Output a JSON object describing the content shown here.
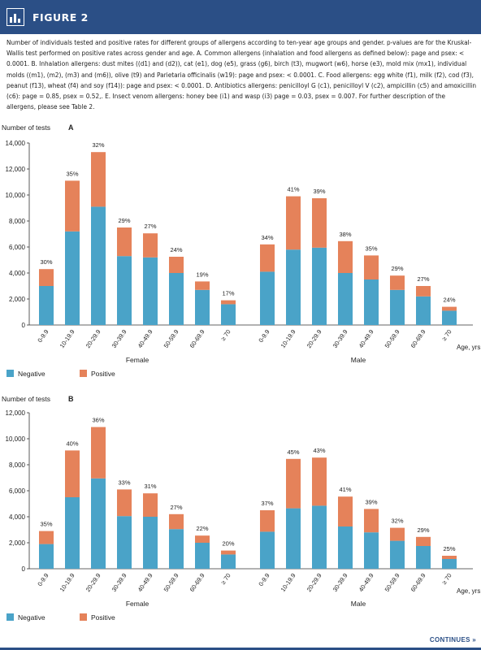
{
  "header": {
    "title": "FIGURE 2"
  },
  "caption": {
    "text": "Number of individuals tested and positive rates for different groups of allergens according to ten-year age groups and gender. p-values are for the Kruskal-Wallis test performed on positive rates across gender and age. A. Common allergens (inhalation and food allergens as defined below): page and psex: < 0.0001. B. Inhalation allergens: dust mites ((d1) and (d2)), cat (e1), dog (e5), grass (g6), birch (t3), mugwort (w6), horse (e3), mold mix (mx1), individual molds ((m1), (m2), (m3) and (m6)), olive (t9) and Parietaria officinalis (w19): page and psex: < 0.0001. C. Food allergens: egg white (f1), milk (f2), cod (f3), peanut (f13), wheat (f4) and soy (f14)): page and psex: < 0.0001. D. Antibiotics allergens: penicilloyl G (c1), penicilloyl V (c2), ampicillin (c5) and amoxicillin (c6): page = 0.85, psex = 0.52,. E. Insect venom allergens: honey bee (i1) and wasp (i3) page = 0.03, psex = 0.007. For further description of the allergens, please see Table 2."
  },
  "footer": {
    "continues": "CONTINUES »"
  },
  "colors": {
    "negative": "#4aa3c8",
    "positive": "#e5825a",
    "brand": "#2b4f86"
  },
  "chart_data": [
    {
      "type": "bar",
      "panel": "A",
      "stacked": true,
      "ylabel": "Number of tests",
      "xlabel": "Age, yrs",
      "ylim": [
        0,
        14000
      ],
      "yticks": [
        0,
        2000,
        4000,
        6000,
        8000,
        10000,
        12000,
        14000
      ],
      "ytick_labels": [
        "0",
        "2,000",
        "4,000",
        "6,000",
        "8,000",
        "10,000",
        "12,000",
        "14,000"
      ],
      "groups": [
        {
          "name": "Female",
          "categories": [
            "0-9.9",
            "10-19.9",
            "20-29.9",
            "30-39.9",
            "40-49.9",
            "50-59.9",
            "60-69.9",
            "≥ 70"
          ],
          "negative": [
            3000,
            7200,
            9100,
            5300,
            5200,
            4000,
            2700,
            1600
          ],
          "positive": [
            1300,
            3900,
            4200,
            2200,
            1850,
            1250,
            650,
            300
          ],
          "labels": [
            "30%",
            "35%",
            "32%",
            "29%",
            "27%",
            "24%",
            "19%",
            "17%"
          ]
        },
        {
          "name": "Male",
          "categories": [
            "0-9.9",
            "10-19.9",
            "20-29.9",
            "30-39.9",
            "40-49.9",
            "50-59.9",
            "60-69.9",
            "≥ 70"
          ],
          "negative": [
            4100,
            5800,
            5950,
            4000,
            3500,
            2700,
            2200,
            1100
          ],
          "positive": [
            2100,
            4100,
            3800,
            2450,
            1850,
            1100,
            800,
            300
          ],
          "labels": [
            "34%",
            "41%",
            "39%",
            "38%",
            "35%",
            "29%",
            "27%",
            "24%"
          ]
        }
      ],
      "legend": [
        "Negative",
        "Positive"
      ]
    },
    {
      "type": "bar",
      "panel": "B",
      "stacked": true,
      "ylabel": "Number of tests",
      "xlabel": "Age, yrs",
      "ylim": [
        0,
        12000
      ],
      "yticks": [
        0,
        2000,
        4000,
        6000,
        8000,
        10000,
        12000
      ],
      "ytick_labels": [
        "0",
        "2,000",
        "4,000",
        "6,000",
        "8,000",
        "10,000",
        "12,000"
      ],
      "groups": [
        {
          "name": "Female",
          "categories": [
            "0-9.9",
            "10-19.9",
            "20-29.9",
            "30-39.9",
            "40-49.9",
            "50-59.9",
            "60-69.9",
            "≥ 70"
          ],
          "negative": [
            1900,
            5500,
            6950,
            4050,
            4000,
            3050,
            2000,
            1100
          ],
          "positive": [
            1000,
            3600,
            3950,
            2050,
            1800,
            1150,
            550,
            300
          ],
          "labels": [
            "35%",
            "40%",
            "36%",
            "33%",
            "31%",
            "27%",
            "22%",
            "20%"
          ]
        },
        {
          "name": "Male",
          "categories": [
            "0-9.9",
            "10-19.9",
            "20-29.9",
            "30-39.9",
            "40-49.9",
            "50-59.9",
            "60-69.9",
            "≥ 70"
          ],
          "negative": [
            2850,
            4650,
            4850,
            3250,
            2800,
            2150,
            1750,
            750
          ],
          "positive": [
            1650,
            3800,
            3700,
            2300,
            1800,
            1000,
            700,
            250
          ],
          "labels": [
            "37%",
            "45%",
            "43%",
            "41%",
            "39%",
            "32%",
            "29%",
            "25%"
          ]
        }
      ],
      "legend": [
        "Negative",
        "Positive"
      ]
    }
  ]
}
